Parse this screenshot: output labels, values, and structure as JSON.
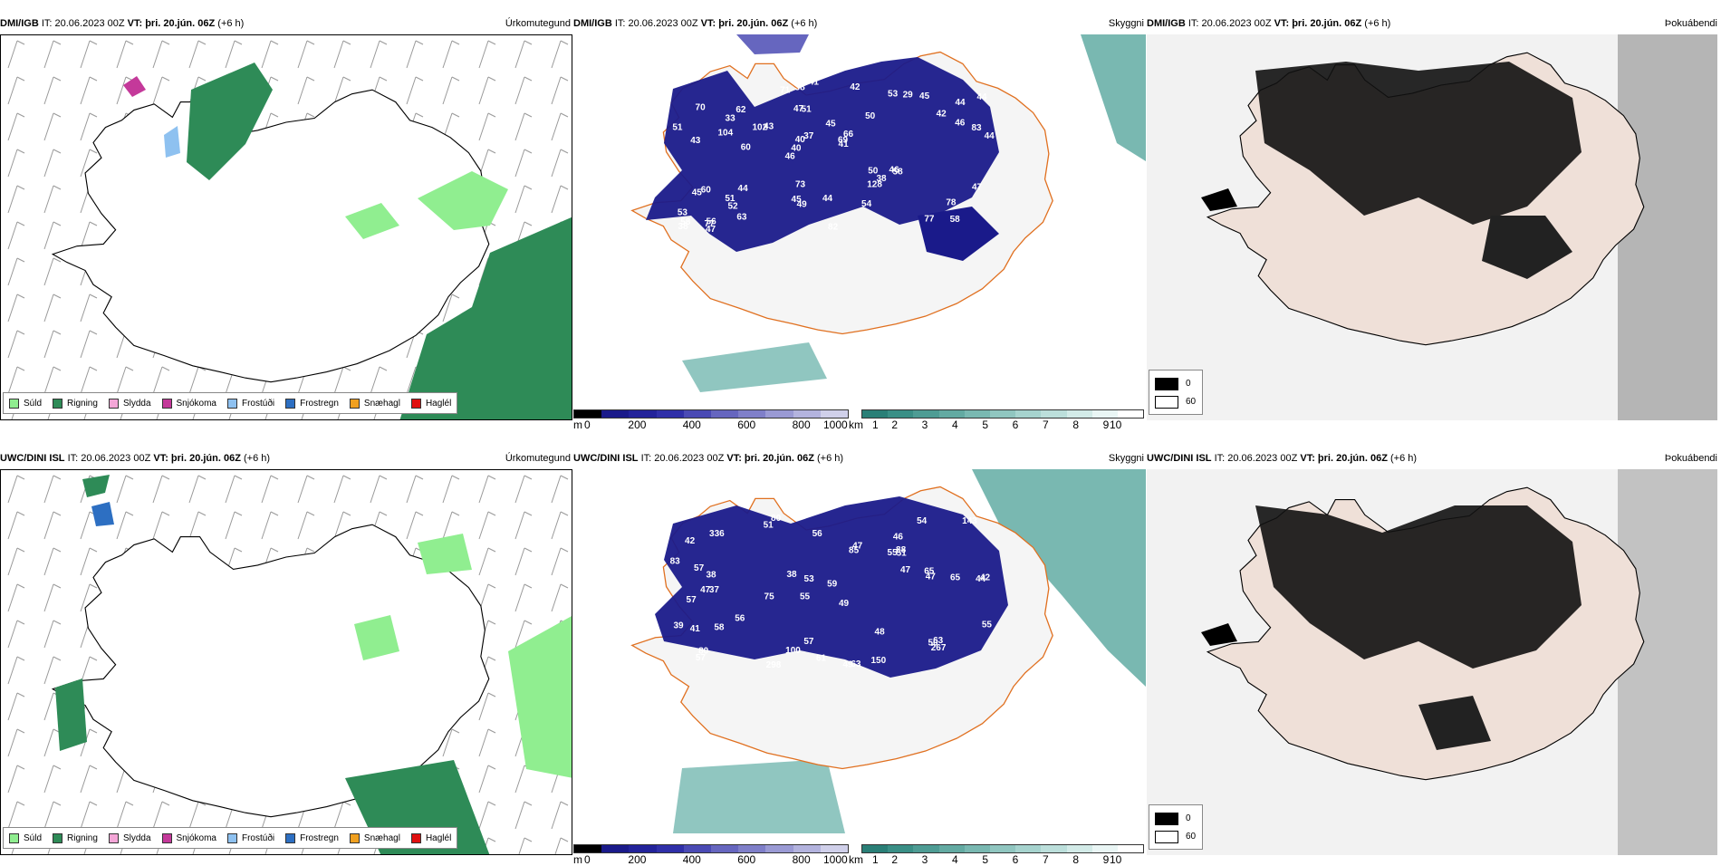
{
  "rows": [
    {
      "model": "DMI/IGB",
      "it": "IT: 20.06.2023 00Z",
      "vt": "VT: þri. 20.jún. 06Z",
      "lead": "(+6 h)",
      "ceiling_labels": [
        "58",
        "43",
        "44",
        "46",
        "50",
        "56",
        "47",
        "45",
        "60",
        "43",
        "53",
        "52",
        "51",
        "66",
        "58",
        "70",
        "38",
        "44",
        "50",
        "46",
        "40",
        "45",
        "40",
        "62",
        "53",
        "44",
        "77",
        "78",
        "46",
        "82",
        "102",
        "104",
        "128",
        "63",
        "83",
        "69",
        "58",
        "49",
        "41",
        "45",
        "42",
        "44",
        "38",
        "54",
        "51",
        "47",
        "38",
        "44",
        "45",
        "41",
        "60",
        "51",
        "33",
        "29",
        "77",
        "42",
        "71",
        "37",
        "47",
        "73"
      ]
    },
    {
      "model": "UWC/DINI ISL",
      "it": "IT: 20.06.2023 00Z",
      "vt": "VT: þri. 20.jún. 06Z",
      "lead": "(+6 h)",
      "ceiling_labels": [
        "80",
        "46",
        "44",
        "55",
        "49",
        "37",
        "42",
        "55",
        "57",
        "85",
        "59",
        "57",
        "51",
        "75",
        "49",
        "63",
        "57",
        "54",
        "47",
        "56",
        "38",
        "47",
        "42",
        "65",
        "39",
        "57",
        "53",
        "47",
        "63",
        "41",
        "50",
        "47",
        "58",
        "38",
        "48",
        "55",
        "65",
        "100",
        "143",
        "56",
        "80",
        "298",
        "150",
        "336",
        "61",
        "51",
        "267",
        "88",
        "83"
      ]
    }
  ],
  "precip": {
    "title": "Úrkomutegund",
    "legend": [
      {
        "label": "Súld",
        "color": "#90ee90"
      },
      {
        "label": "Rigning",
        "color": "#2e8b57"
      },
      {
        "label": "Slydda",
        "color": "#f4a6d7"
      },
      {
        "label": "Snjókoma",
        "color": "#c4399a"
      },
      {
        "label": "Frostúði",
        "color": "#8ec1f0"
      },
      {
        "label": "Frostregn",
        "color": "#2d6fc2"
      },
      {
        "label": "Snæhagl",
        "color": "#f0a020"
      },
      {
        "label": "Haglél",
        "color": "#e01010"
      }
    ]
  },
  "ceiling": {
    "title": "Skyggni",
    "cb1": {
      "unit": "m",
      "ticks": [
        "0",
        "200",
        "400",
        "600",
        "800",
        "1000"
      ],
      "colors": [
        "#000000",
        "#1a1a8a",
        "#22229a",
        "#2f2fa8",
        "#4a4ab4",
        "#6666bf",
        "#7f7fc9",
        "#9a9ad4",
        "#b3b3de",
        "#d0d0ea"
      ]
    },
    "cb2": {
      "unit": "km",
      "ticks": [
        "1",
        "2",
        "3",
        "4",
        "5",
        "6",
        "7",
        "8",
        "9",
        "10"
      ],
      "colors": [
        "#2a7f77",
        "#3a8f86",
        "#4e9c94",
        "#63aaa2",
        "#79b8b1",
        "#90c6c0",
        "#a6d3ce",
        "#bcdfdb",
        "#d3ebe8",
        "#eaf6f5",
        "#ffffff"
      ]
    }
  },
  "cloud": {
    "title": "Þokuábendi",
    "legend": [
      {
        "label": "0",
        "color": "#000000"
      },
      {
        "label": "60",
        "color": "#ffffff"
      }
    ]
  }
}
